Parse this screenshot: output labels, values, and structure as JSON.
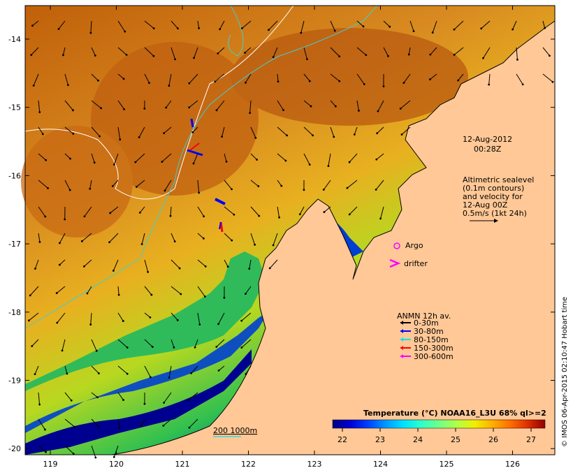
{
  "map": {
    "timestamp": [
      "12-Aug-2012",
      "00:28Z"
    ],
    "altimetry_note": [
      "Altimetric sealevel",
      "(0.1m contours)",
      "and velocity for",
      "12-Aug 00Z",
      "0.5m/s (1kt 24h)"
    ],
    "argo_label": "Argo",
    "drifter_label": "drifter",
    "isobath_label": "200  1000m",
    "credit": "© IMOS 06-Apr-2015 02:10:47 Hobart time",
    "lon_ticks": [
      "119",
      "120",
      "121",
      "122",
      "123",
      "124",
      "125",
      "126"
    ],
    "lat_ticks": [
      "-14",
      "-15",
      "-16",
      "-17",
      "-18",
      "-19",
      "-20"
    ]
  },
  "legend": {
    "title": "ANMN 12h av.",
    "items": [
      {
        "label": "0-30m",
        "color": "#000000"
      },
      {
        "label": "30-80m",
        "color": "#0000ff"
      },
      {
        "label": "80-150m",
        "color": "#00e5e5"
      },
      {
        "label": "150-300m",
        "color": "#ff0000"
      },
      {
        "label": "300-600m",
        "color": "#ff00ff"
      }
    ]
  },
  "colorbar": {
    "title": "Temperature (°C) NOAA16_L3U 68% ql>=2",
    "ticks": [
      "22",
      "23",
      "24",
      "25",
      "26",
      "27"
    ],
    "colors": [
      "#00007f",
      "#0000d4",
      "#0040ff",
      "#0098ff",
      "#00e0ff",
      "#30ffc8",
      "#70ff88",
      "#b0ff48",
      "#f0f000",
      "#ffb000",
      "#ff7000",
      "#e03000",
      "#900000"
    ]
  },
  "colors": {
    "land": "#ffc896",
    "warm": "#c86414",
    "cool": "#0028c8"
  }
}
